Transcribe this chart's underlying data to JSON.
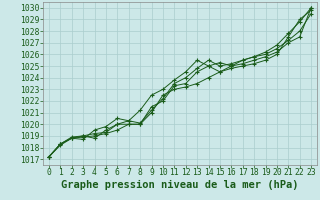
{
  "title": "Graphe pression niveau de la mer (hPa)",
  "xlabel_hours": [
    0,
    1,
    2,
    3,
    4,
    5,
    6,
    7,
    8,
    9,
    10,
    11,
    12,
    13,
    14,
    15,
    16,
    17,
    18,
    19,
    20,
    21,
    22,
    23
  ],
  "ylim": [
    1016.5,
    1030.5
  ],
  "xlim": [
    -0.5,
    23.5
  ],
  "yticks": [
    1017,
    1018,
    1019,
    1020,
    1021,
    1022,
    1023,
    1024,
    1025,
    1026,
    1027,
    1028,
    1029,
    1030
  ],
  "bg_color": "#cce8e8",
  "grid_color": "#aacece",
  "line_color": "#1a5c1a",
  "series": [
    [
      1017.2,
      1018.3,
      1018.8,
      1018.9,
      1019.0,
      1019.2,
      1019.5,
      1020.0,
      1020.0,
      1021.0,
      1022.5,
      1023.0,
      1023.2,
      1023.5,
      1024.0,
      1024.5,
      1024.8,
      1025.0,
      1025.2,
      1025.5,
      1026.0,
      1027.5,
      1029.0,
      1029.8
    ],
    [
      1017.2,
      1018.3,
      1018.8,
      1019.0,
      1019.2,
      1019.3,
      1020.0,
      1020.0,
      1020.0,
      1021.5,
      1022.0,
      1023.3,
      1023.5,
      1024.5,
      1025.0,
      1024.5,
      1025.0,
      1025.2,
      1025.5,
      1025.8,
      1026.2,
      1027.0,
      1027.5,
      1030.0
    ],
    [
      1017.2,
      1018.2,
      1018.8,
      1018.7,
      1019.5,
      1019.8,
      1020.5,
      1020.3,
      1020.1,
      1021.2,
      1022.2,
      1023.5,
      1024.0,
      1024.8,
      1025.5,
      1025.0,
      1025.2,
      1025.5,
      1025.8,
      1026.2,
      1026.8,
      1027.8,
      1028.8,
      1030.0
    ],
    [
      1017.2,
      1018.3,
      1018.9,
      1019.0,
      1018.8,
      1019.5,
      1020.0,
      1020.3,
      1021.2,
      1022.5,
      1023.0,
      1023.8,
      1024.5,
      1025.5,
      1025.0,
      1025.3,
      1025.0,
      1025.5,
      1025.8,
      1026.0,
      1026.5,
      1027.2,
      1028.0,
      1029.5
    ]
  ],
  "title_fontsize": 7.5,
  "tick_fontsize": 5.8
}
